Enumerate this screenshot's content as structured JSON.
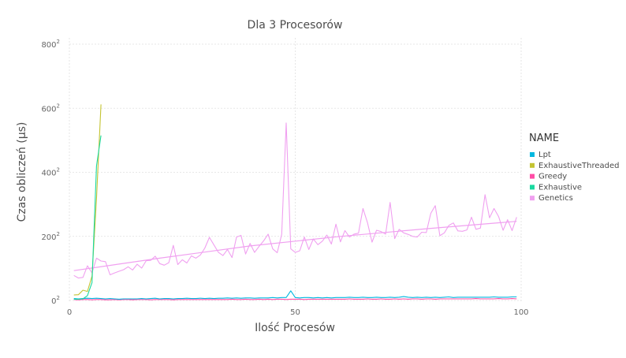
{
  "chart_data": {
    "type": "line",
    "title": "Dla 3 Procesorów",
    "xlabel": "Ilość Procesów",
    "ylabel": "Czas obliczeń (μs)",
    "xlim": [
      0,
      100
    ],
    "y_scale": "sqrt",
    "y_ticks": [
      {
        "base": "0",
        "exp": "2",
        "value": 0
      },
      {
        "base": "200",
        "exp": "2",
        "value": 200
      },
      {
        "base": "400",
        "exp": "2",
        "value": 400
      },
      {
        "base": "600",
        "exp": "2",
        "value": 600
      },
      {
        "base": "800",
        "exp": "2",
        "value": 800
      }
    ],
    "x_ticks": [
      0,
      50,
      100
    ],
    "grid": true,
    "legend": {
      "title": "NAME",
      "position": "right"
    },
    "series": [
      {
        "name": "Lpt",
        "color": "#00b8e0",
        "x": [
          1,
          2,
          3,
          4,
          5,
          6,
          7,
          8,
          9,
          10,
          11,
          12,
          13,
          14,
          15,
          16,
          17,
          18,
          19,
          20,
          21,
          22,
          23,
          24,
          25,
          26,
          27,
          28,
          29,
          30,
          31,
          32,
          33,
          34,
          35,
          36,
          37,
          38,
          39,
          40,
          41,
          42,
          43,
          44,
          45,
          46,
          47,
          48,
          49,
          50,
          51,
          52,
          53,
          54,
          55,
          56,
          57,
          58,
          59,
          60,
          61,
          62,
          63,
          64,
          65,
          66,
          67,
          68,
          69,
          70,
          71,
          72,
          73,
          74,
          75,
          76,
          77,
          78,
          79,
          80,
          81,
          82,
          83,
          84,
          85,
          86,
          87,
          88,
          89,
          90,
          91,
          92,
          93,
          94,
          95,
          96,
          97,
          98,
          99
        ],
        "y": [
          6,
          5,
          6,
          7,
          6,
          7,
          6,
          5,
          6,
          5,
          4,
          5,
          5,
          5,
          5,
          6,
          5,
          6,
          7,
          5,
          6,
          6,
          5,
          6,
          6,
          7,
          6,
          6,
          7,
          6,
          7,
          6,
          7,
          7,
          8,
          7,
          8,
          7,
          8,
          8,
          7,
          8,
          8,
          8,
          9,
          8,
          9,
          9,
          30,
          9,
          8,
          9,
          9,
          8,
          9,
          8,
          9,
          8,
          9,
          9,
          9,
          10,
          9,
          9,
          10,
          9,
          9,
          10,
          9,
          9,
          10,
          9,
          10,
          12,
          10,
          9,
          10,
          9,
          10,
          9,
          10,
          9,
          10,
          11,
          9,
          10,
          10,
          10,
          10,
          10,
          10,
          10,
          10,
          11,
          10,
          10,
          10,
          11,
          11
        ]
      },
      {
        "name": "ExhaustiveThreaded",
        "color": "#c4c432",
        "x": [
          1,
          2,
          3,
          4,
          5,
          6,
          7
        ],
        "y": [
          17,
          18,
          32,
          28,
          76,
          318,
          612
        ]
      },
      {
        "name": "Greedy",
        "color": "#ff4da6",
        "x": [
          1,
          2,
          3,
          4,
          5,
          6,
          7,
          8,
          9,
          10,
          11,
          12,
          13,
          14,
          15,
          16,
          17,
          18,
          19,
          20,
          21,
          22,
          23,
          24,
          25,
          26,
          27,
          28,
          29,
          30,
          31,
          32,
          33,
          34,
          35,
          36,
          37,
          38,
          39,
          40,
          41,
          42,
          43,
          44,
          45,
          46,
          47,
          48,
          49,
          50,
          51,
          52,
          53,
          54,
          55,
          56,
          57,
          58,
          59,
          60,
          61,
          62,
          63,
          64,
          65,
          66,
          67,
          68,
          69,
          70,
          71,
          72,
          73,
          74,
          75,
          76,
          77,
          78,
          79,
          80,
          81,
          82,
          83,
          84,
          85,
          86,
          87,
          88,
          89,
          90,
          91,
          92,
          93,
          94,
          95,
          96,
          97,
          98,
          99
        ],
        "y": [
          3,
          2,
          3,
          3,
          2,
          3,
          3,
          2,
          2,
          3,
          2,
          3,
          3,
          2,
          3,
          3,
          3,
          2,
          3,
          3,
          3,
          3,
          2,
          3,
          3,
          3,
          3,
          3,
          3,
          3,
          3,
          3,
          3,
          3,
          3,
          4,
          3,
          3,
          4,
          3,
          3,
          4,
          3,
          4,
          3,
          4,
          4,
          3,
          4,
          4,
          4,
          3,
          4,
          4,
          4,
          4,
          4,
          4,
          4,
          4,
          4,
          5,
          4,
          4,
          4,
          5,
          4,
          4,
          5,
          4,
          4,
          5,
          4,
          5,
          4,
          5,
          5,
          4,
          5,
          5,
          4,
          5,
          5,
          5,
          5,
          5,
          5,
          5,
          5,
          6,
          5,
          5,
          5,
          5,
          6,
          5,
          5,
          6,
          5
        ]
      },
      {
        "name": "Exhaustive",
        "color": "#1ad9a0",
        "x": [
          1,
          2,
          3,
          4,
          5,
          6,
          7
        ],
        "y": [
          4,
          4,
          5,
          15,
          56,
          420,
          515
        ]
      },
      {
        "name": "Genetics",
        "color": "#f0a0f0",
        "x": [
          1,
          2,
          3,
          4,
          5,
          6,
          7,
          8,
          9,
          10,
          11,
          12,
          13,
          14,
          15,
          16,
          17,
          18,
          19,
          20,
          21,
          22,
          23,
          24,
          25,
          26,
          27,
          28,
          29,
          30,
          31,
          32,
          33,
          34,
          35,
          36,
          37,
          38,
          39,
          40,
          41,
          42,
          43,
          44,
          45,
          46,
          47,
          48,
          49,
          50,
          51,
          52,
          53,
          54,
          55,
          56,
          57,
          58,
          59,
          60,
          61,
          62,
          63,
          64,
          65,
          66,
          67,
          68,
          69,
          70,
          71,
          72,
          73,
          74,
          75,
          76,
          77,
          78,
          79,
          80,
          81,
          82,
          83,
          84,
          85,
          86,
          87,
          88,
          89,
          90,
          91,
          92,
          93,
          94,
          95,
          96,
          97,
          98,
          99
        ],
        "y": [
          78,
          70,
          72,
          108,
          86,
          132,
          123,
          121,
          80,
          86,
          91,
          96,
          105,
          95,
          113,
          101,
          124,
          125,
          138,
          115,
          110,
          118,
          172,
          112,
          127,
          117,
          139,
          132,
          142,
          164,
          197,
          173,
          150,
          140,
          159,
          134,
          198,
          203,
          145,
          178,
          150,
          169,
          186,
          207,
          161,
          149,
          206,
          554,
          161,
          150,
          155,
          198,
          159,
          192,
          174,
          185,
          204,
          176,
          238,
          183,
          218,
          198,
          207,
          210,
          287,
          242,
          182,
          219,
          215,
          207,
          306,
          193,
          222,
          211,
          206,
          200,
          198,
          213,
          212,
          272,
          296,
          202,
          211,
          234,
          242,
          217,
          216,
          220,
          260,
          222,
          226,
          330,
          258,
          287,
          262,
          219,
          252,
          218,
          260
        ]
      },
      {
        "name": "Genetics-trend",
        "color": "#f0a0f0",
        "x": [
          1,
          20,
          40,
          60,
          80,
          99
        ],
        "y": [
          93,
          132,
          170,
          200,
          225,
          247
        ]
      }
    ]
  }
}
